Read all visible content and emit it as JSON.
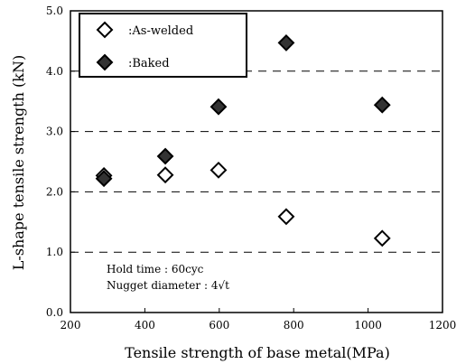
{
  "chart_data": {
    "type": "scatter",
    "xlabel": "Tensile strength of base metal(MPa)",
    "ylabel": "L-shape tensile strength (kN)",
    "xlim": [
      200,
      1200
    ],
    "ylim": [
      0.0,
      5.0
    ],
    "x_ticks": [
      "200",
      "400",
      "600",
      "800",
      "1000",
      "1200"
    ],
    "y_ticks": [
      "0.0",
      "1.0",
      "2.0",
      "3.0",
      "4.0",
      "5.0"
    ],
    "grid": "horizontal dashed",
    "legend_position": "top-left",
    "series": [
      {
        "name": ":As-welded",
        "marker": "hollow-diamond",
        "color": "#000000",
        "points": [
          {
            "x": 290,
            "y": 2.27
          },
          {
            "x": 455,
            "y": 2.28
          },
          {
            "x": 598,
            "y": 2.36
          },
          {
            "x": 780,
            "y": 1.59
          },
          {
            "x": 1038,
            "y": 1.23
          }
        ]
      },
      {
        "name": ":Baked",
        "marker": "filled-diamond",
        "color": "#333333",
        "points": [
          {
            "x": 290,
            "y": 2.22
          },
          {
            "x": 455,
            "y": 2.59
          },
          {
            "x": 598,
            "y": 3.41
          },
          {
            "x": 780,
            "y": 4.47
          },
          {
            "x": 1038,
            "y": 3.44
          }
        ]
      }
    ],
    "annotations": [
      "Hold time : 60cyc",
      "Nugget diameter : 4√t"
    ]
  }
}
